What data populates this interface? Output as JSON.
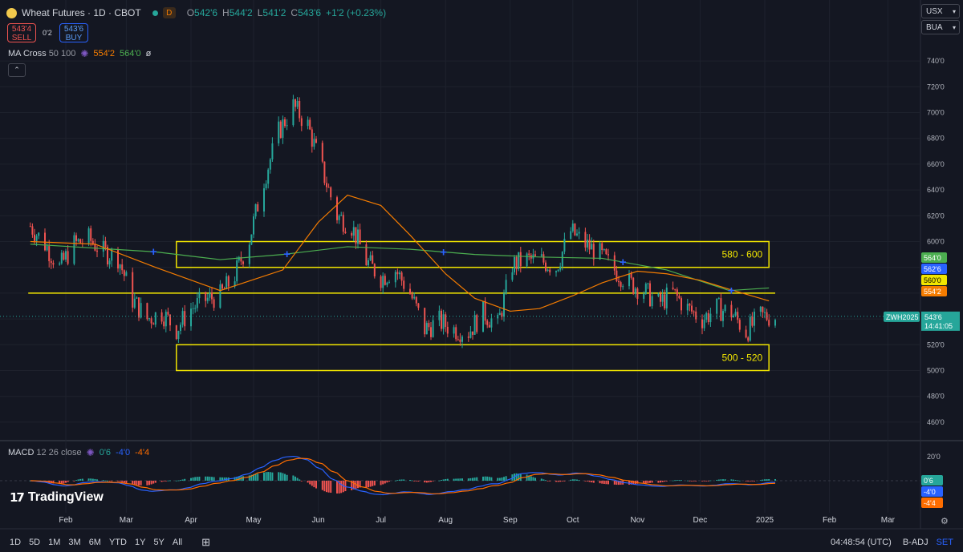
{
  "header": {
    "symbol": "Wheat Futures · 1D · CBOT",
    "status": "D",
    "open_label": "O",
    "open": "542'6",
    "high_label": "H",
    "high": "544'2",
    "low_label": "L",
    "low": "541'2",
    "close_label": "C",
    "close": "543'6",
    "change": "+1'2 (+0.23%)"
  },
  "order": {
    "sell_price": "543'4",
    "sell_label": "SELL",
    "spread": "0'2",
    "buy_price": "543'6",
    "buy_label": "BUY"
  },
  "ma_indicator": {
    "name": "MA Cross",
    "params": "50 100",
    "value1": "554'2",
    "value2": "564'0",
    "value3": "ø"
  },
  "macd_indicator": {
    "name": "MACD",
    "params": "12 26 close",
    "v1": "0'6",
    "v2": "-4'0",
    "v3": "-4'4"
  },
  "top_right": {
    "currency": "USX",
    "unit": "BUA"
  },
  "colors": {
    "bg": "#141722",
    "up": "#26a69a",
    "down": "#ef5350",
    "ma_fast": "#f57c00",
    "ma_slow": "#4caf50",
    "zone": "#f2e600",
    "macd": "#2962ff",
    "signal": "#ff6d00",
    "cross": "#2962ff"
  },
  "chart_data": {
    "type": "candlestick",
    "price_ticks": [
      "740'0",
      "720'0",
      "700'0",
      "680'0",
      "660'0",
      "640'0",
      "620'0",
      "600'0",
      "580'0",
      "560'0",
      "540'0",
      "520'0",
      "500'0",
      "480'0",
      "460'0"
    ],
    "price_tick_values": [
      740,
      720,
      700,
      680,
      660,
      640,
      620,
      600,
      580,
      560,
      540,
      520,
      500,
      480,
      460
    ],
    "ylim": [
      450,
      750
    ],
    "macd_ticks": [
      "20'0"
    ],
    "x_labels": [
      "Feb",
      "Mar",
      "Apr",
      "May",
      "Jun",
      "Jul",
      "Aug",
      "Sep",
      "Oct",
      "Nov",
      "Dec",
      "2025",
      "Feb",
      "Mar"
    ],
    "x_label_dates": [
      "2024-02-01",
      "2024-03-01",
      "2024-04-01",
      "2024-05-01",
      "2024-06-01",
      "2024-07-01",
      "2024-08-01",
      "2024-09-01",
      "2024-10-01",
      "2024-11-01",
      "2024-12-01",
      "2025-01-01",
      "2025-02-01",
      "2025-03-01"
    ],
    "zones": [
      {
        "label": "580 - 600",
        "from": 580,
        "to": 600,
        "start": "2024-03-25",
        "end": "2025-01-03"
      },
      {
        "label": "500 - 520",
        "from": 500,
        "to": 520,
        "start": "2024-03-25",
        "end": "2025-01-03"
      }
    ],
    "support_line": {
      "value": 560,
      "start": "2024-01-14",
      "end": "2025-01-06"
    },
    "close_series": {
      "dates": [
        "2024-01-15",
        "2024-01-22",
        "2024-01-29",
        "2024-02-05",
        "2024-02-12",
        "2024-02-19",
        "2024-02-26",
        "2024-03-04",
        "2024-03-11",
        "2024-03-18",
        "2024-03-25",
        "2024-04-01",
        "2024-04-08",
        "2024-04-15",
        "2024-04-22",
        "2024-04-29",
        "2024-05-06",
        "2024-05-13",
        "2024-05-20",
        "2024-05-27",
        "2024-06-03",
        "2024-06-10",
        "2024-06-17",
        "2024-06-24",
        "2024-07-01",
        "2024-07-08",
        "2024-07-15",
        "2024-07-22",
        "2024-07-29",
        "2024-08-05",
        "2024-08-12",
        "2024-08-19",
        "2024-08-26",
        "2024-09-02",
        "2024-09-09",
        "2024-09-16",
        "2024-09-23",
        "2024-09-30",
        "2024-10-07",
        "2024-10-14",
        "2024-10-21",
        "2024-10-28",
        "2024-11-04",
        "2024-11-11",
        "2024-11-18",
        "2024-11-25",
        "2024-12-02",
        "2024-12-09",
        "2024-12-16",
        "2024-12-23",
        "2024-12-30"
      ],
      "values": [
        612,
        598,
        580,
        598,
        602,
        592,
        588,
        555,
        540,
        545,
        532,
        548,
        555,
        558,
        574,
        602,
        648,
        685,
        705,
        690,
        655,
        620,
        612,
        585,
        572,
        578,
        560,
        532,
        538,
        532,
        530,
        545,
        535,
        582,
        586,
        585,
        580,
        608,
        598,
        590,
        578,
        568,
        562,
        552,
        560,
        548,
        540,
        548,
        545,
        530,
        542
      ]
    },
    "ma_fast": {
      "name": "MA 50",
      "dates": [
        "2024-01-15",
        "2024-02-15",
        "2024-03-15",
        "2024-04-15",
        "2024-05-15",
        "2024-06-01",
        "2024-06-15",
        "2024-07-01",
        "2024-07-15",
        "2024-08-01",
        "2024-08-15",
        "2024-09-01",
        "2024-09-15",
        "2024-10-01",
        "2024-10-15",
        "2024-11-01",
        "2024-11-15",
        "2024-12-01",
        "2024-12-15",
        "2025-01-03"
      ],
      "values": [
        600,
        598,
        580,
        562,
        578,
        615,
        636,
        628,
        605,
        575,
        556,
        546,
        548,
        558,
        568,
        577,
        575,
        570,
        563,
        554
      ]
    },
    "ma_slow": {
      "name": "MA 100",
      "dates": [
        "2024-01-15",
        "2024-03-15",
        "2024-04-15",
        "2024-05-15",
        "2024-06-15",
        "2024-07-15",
        "2024-08-15",
        "2024-09-15",
        "2024-10-15",
        "2024-11-15",
        "2024-12-15",
        "2025-01-03"
      ],
      "values": [
        598,
        592,
        586,
        590,
        596,
        594,
        590,
        588,
        587,
        578,
        562,
        564
      ]
    },
    "cross_markers": [
      "2024-03-14",
      "2024-05-17",
      "2024-07-31",
      "2024-10-25",
      "2024-12-16"
    ],
    "last_price": {
      "symbol": "ZWH2025",
      "price": "543'6",
      "countdown": "14:41:05"
    },
    "scale_labels": [
      {
        "text": "564'0",
        "color": "#4caf50"
      },
      {
        "text": "562'6",
        "color": "#2962ff"
      },
      {
        "text": "560'0",
        "color": "#f2e600"
      },
      {
        "text": "554'2",
        "color": "#f57c00"
      }
    ],
    "macd_scale_labels": [
      {
        "text": "0'6",
        "color": "#26a69a"
      },
      {
        "text": "-4'0",
        "color": "#2962ff"
      },
      {
        "text": "-4'4",
        "color": "#ff6d00"
      }
    ]
  },
  "bottom_bar": {
    "timeframes": [
      "1D",
      "5D",
      "1M",
      "3M",
      "6M",
      "YTD",
      "1Y",
      "5Y",
      "All"
    ],
    "clock": "04:48:54 (UTC)",
    "adj": "B-ADJ",
    "set": "SET"
  },
  "logo": "TradingView"
}
